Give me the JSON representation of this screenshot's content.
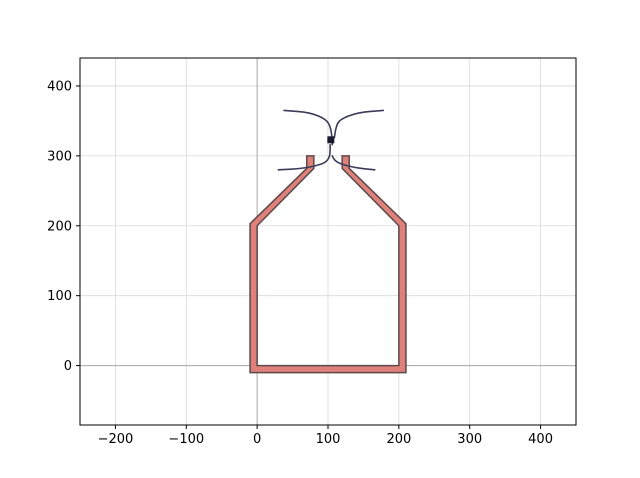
{
  "chart_data": {
    "type": "scatter",
    "title": "",
    "xlabel": "",
    "ylabel": "",
    "xlim": [
      -250,
      450
    ],
    "ylim": [
      -85,
      440
    ],
    "x_ticks": [
      -200,
      -100,
      0,
      100,
      200,
      300,
      400
    ],
    "y_ticks": [
      0,
      100,
      200,
      300,
      400
    ],
    "x_tick_labels": [
      "−200",
      "−100",
      "0",
      "100",
      "200",
      "300",
      "400"
    ],
    "y_tick_labels": [
      "0",
      "100",
      "200",
      "300",
      "400"
    ],
    "grid": true,
    "axis_lines_through_origin": true,
    "colors": {
      "shape_fill": "#e0807a",
      "shape_edge": "#5a4a4a",
      "curve": "#3c3c5a",
      "marker": "#1a1a2e",
      "grid": "#d9d9d9",
      "origin_line": "#aaaaaa"
    },
    "series": [
      {
        "kind": "polygon",
        "points": [
          [
            -10,
            -10
          ],
          [
            210,
            -10
          ],
          [
            210,
            203
          ],
          [
            130,
            282
          ],
          [
            130,
            300
          ],
          [
            120,
            300
          ],
          [
            120,
            282
          ],
          [
            200,
            200
          ],
          [
            200,
            0
          ],
          [
            0,
            0
          ],
          [
            0,
            200
          ],
          [
            80,
            282
          ],
          [
            80,
            300
          ],
          [
            70,
            300
          ],
          [
            70,
            282
          ],
          [
            -10,
            203
          ]
        ]
      },
      {
        "kind": "curve",
        "points": [
          [
            38,
            365
          ],
          [
            75,
            362
          ],
          [
            98,
            352
          ],
          [
            104,
            340
          ],
          [
            106,
            322
          ],
          [
            106,
            316
          ]
        ]
      },
      {
        "kind": "curve",
        "points": [
          [
            178,
            365
          ],
          [
            142,
            362
          ],
          [
            116,
            352
          ],
          [
            111,
            340
          ],
          [
            109,
            326
          ]
        ]
      },
      {
        "kind": "curve",
        "points": [
          [
            30,
            280
          ],
          [
            65,
            282
          ],
          [
            92,
            288
          ],
          [
            100,
            294
          ],
          [
            103,
            302
          ],
          [
            103,
            316
          ]
        ]
      },
      {
        "kind": "curve",
        "points": [
          [
            166,
            280
          ],
          [
            138,
            283
          ],
          [
            116,
            289
          ],
          [
            109,
            294
          ],
          [
            106,
            300
          ]
        ]
      },
      {
        "kind": "marker",
        "x": 104,
        "y": 323
      }
    ]
  }
}
